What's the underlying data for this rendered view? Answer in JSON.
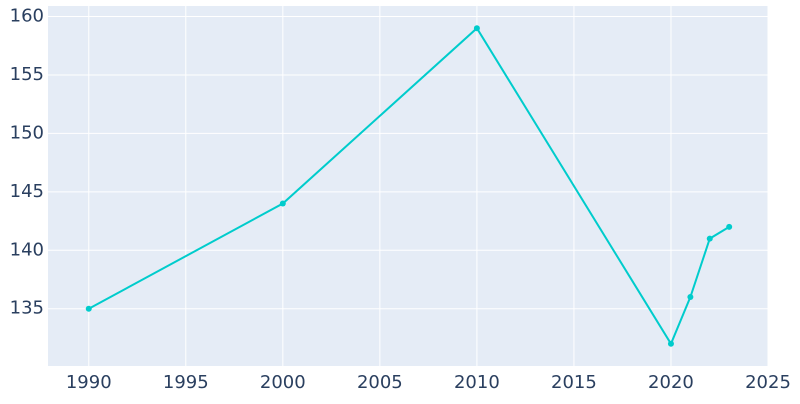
{
  "chart_data": {
    "type": "line",
    "x": [
      1990,
      2000,
      2010,
      2020,
      2021,
      2022,
      2023
    ],
    "series": [
      {
        "color": "#00cccc",
        "values": [
          135,
          144,
          159,
          132,
          136,
          141,
          142
        ]
      }
    ],
    "xlim": [
      1987.9,
      2025
    ],
    "xticks": [
      1990,
      1995,
      2000,
      2005,
      2010,
      2015,
      2020,
      2025
    ],
    "ylim": [
      130.1,
      160.9
    ],
    "yticks": [
      135,
      140,
      145,
      150,
      155,
      160
    ],
    "grid": true
  }
}
